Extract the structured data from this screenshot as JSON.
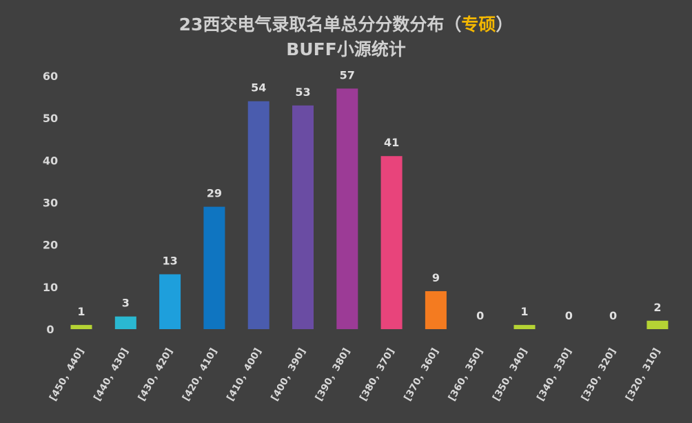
{
  "title": {
    "prefix": "23西交电气录取名单总分分数分布（",
    "highlight": "专硕",
    "suffix": "）",
    "subtitle": "BUFF小源统计",
    "highlight_color": "#f5b800"
  },
  "chart_data": {
    "type": "bar",
    "categories": [
      "[450，440]",
      "[440，430]",
      "[430，420]",
      "[420，410]",
      "[410，400]",
      "[400，390]",
      "[390，380]",
      "[380，370]",
      "[370，360]",
      "[360，350]",
      "[350，340]",
      "[340，330]",
      "[330，320]",
      "[320，310]"
    ],
    "values": [
      1,
      3,
      13,
      29,
      54,
      53,
      57,
      41,
      9,
      0,
      1,
      0,
      0,
      2
    ],
    "colors": [
      "#b5d334",
      "#2ab8d1",
      "#1e9fdc",
      "#0f75c1",
      "#4a5cae",
      "#6a4ca3",
      "#9c3b96",
      "#e8447b",
      "#f47b20",
      "#b5d334",
      "#b5d334",
      "#b5d334",
      "#b5d334",
      "#b5d334"
    ],
    "ylim": [
      0,
      60
    ],
    "yticks": [
      0,
      10,
      20,
      30,
      40,
      50,
      60
    ],
    "xlabel": "",
    "ylabel": "",
    "grid": false,
    "background": "#404040"
  }
}
